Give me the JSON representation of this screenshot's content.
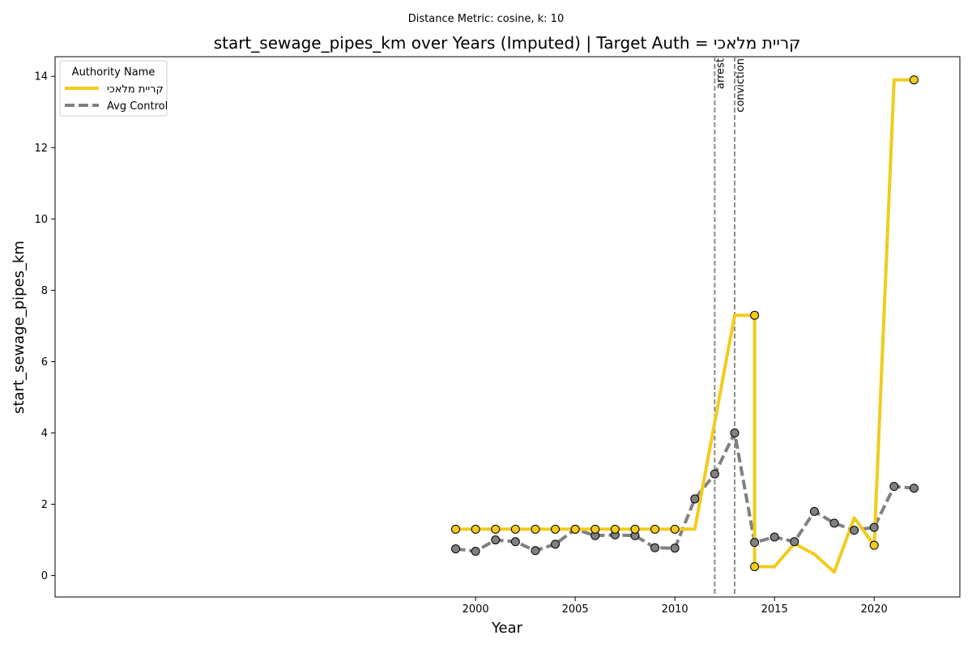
{
  "chart_data": {
    "type": "line",
    "suptitle": "Distance Metric: cosine, k: 10",
    "title": "start_sewage_pipes_km over Years (Imputed) | Target Auth = קריית מלאכי",
    "xlabel": "Year",
    "ylabel": "start_sewage_pipes_km",
    "xlim": [
      1978.9,
      2024.3
    ],
    "ylim": [
      -0.6,
      14.55
    ],
    "xticks": [
      2000,
      2005,
      2010,
      2015,
      2020
    ],
    "yticks": [
      0,
      2,
      4,
      6,
      8,
      10,
      12,
      14
    ],
    "grid": false,
    "legend": {
      "title": "Authority Name",
      "placement": "top-left"
    },
    "events": [
      {
        "label": "arrest",
        "x": 2012
      },
      {
        "label": "conviction",
        "x": 2013
      }
    ],
    "series": [
      {
        "name": "קריית מלאכי",
        "color": "#f2cb1d",
        "style": "solid",
        "x": [
          1999,
          2000,
          2001,
          2002,
          2003,
          2004,
          2005,
          2006,
          2007,
          2008,
          2009,
          2010,
          2011,
          2012,
          2013,
          2014,
          2014,
          2015,
          2016,
          2017,
          2018,
          2019,
          2020,
          2021,
          2022
        ],
        "values": [
          1.3,
          1.3,
          1.3,
          1.3,
          1.3,
          1.3,
          1.3,
          1.3,
          1.3,
          1.3,
          1.3,
          1.3,
          1.3,
          4.3,
          7.3,
          7.3,
          0.25,
          0.25,
          0.9,
          0.6,
          0.1,
          1.62,
          0.85,
          13.9,
          13.9
        ],
        "markers": [
          [
            1999,
            1.3
          ],
          [
            2000,
            1.3
          ],
          [
            2001,
            1.3
          ],
          [
            2002,
            1.3
          ],
          [
            2003,
            1.3
          ],
          [
            2004,
            1.3
          ],
          [
            2005,
            1.3
          ],
          [
            2006,
            1.3
          ],
          [
            2007,
            1.3
          ],
          [
            2008,
            1.3
          ],
          [
            2009,
            1.3
          ],
          [
            2010,
            1.3
          ],
          [
            2014,
            7.3
          ],
          [
            2014,
            0.25
          ],
          [
            2020,
            0.85
          ],
          [
            2022,
            13.9
          ]
        ]
      },
      {
        "name": "Avg Control",
        "color": "#808080",
        "style": "dashed",
        "x": [
          1999,
          2000,
          2001,
          2002,
          2003,
          2004,
          2005,
          2006,
          2007,
          2008,
          2009,
          2010,
          2011,
          2012,
          2013,
          2014,
          2015,
          2016,
          2017,
          2018,
          2019,
          2020,
          2021,
          2022
        ],
        "values": [
          0.75,
          0.68,
          1.0,
          0.95,
          0.7,
          0.88,
          1.3,
          1.12,
          1.14,
          1.12,
          0.78,
          0.77,
          2.15,
          2.85,
          4.0,
          0.93,
          1.08,
          0.95,
          1.8,
          1.47,
          1.27,
          1.35,
          2.5,
          2.45
        ],
        "markers": "all"
      }
    ]
  }
}
